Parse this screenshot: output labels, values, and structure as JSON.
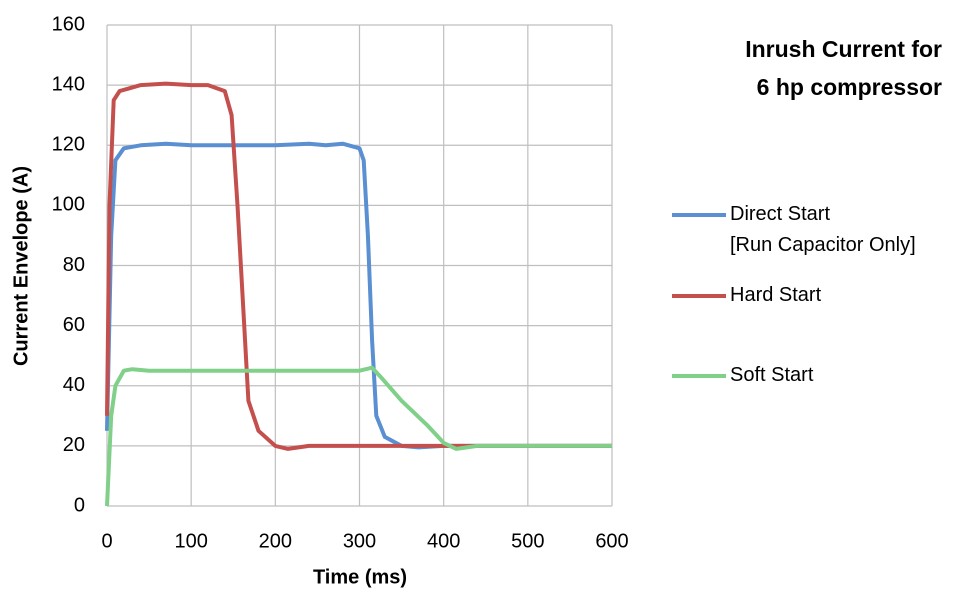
{
  "chart_data": {
    "type": "line",
    "title": "Inrush Current for\n6 hp compressor",
    "x_label": "Time (ms)",
    "y_label": "Current Envelope (A)",
    "xlim": [
      0,
      600
    ],
    "xticks": [
      0,
      100,
      200,
      300,
      400,
      500,
      600
    ],
    "ylim": [
      0,
      160
    ],
    "yticks": [
      0,
      20,
      40,
      60,
      80,
      100,
      120,
      140,
      160
    ],
    "grid": true,
    "series": [
      {
        "name": "Direct Start\n[Run Capacitor Only]",
        "color": "#5a8fd2",
        "x": [
          0,
          5,
          10,
          20,
          40,
          70,
          100,
          150,
          200,
          240,
          260,
          280,
          300,
          305,
          310,
          315,
          320,
          330,
          350,
          370,
          400,
          600
        ],
        "values": [
          25,
          90,
          115,
          119,
          120,
          120.5,
          120,
          120,
          120,
          120.5,
          120,
          120.5,
          119,
          115,
          90,
          55,
          30,
          23,
          20,
          19.5,
          20,
          20
        ]
      },
      {
        "name": "Hard Start",
        "color": "#c4504e",
        "x": [
          0,
          3,
          8,
          15,
          40,
          70,
          100,
          120,
          140,
          148,
          155,
          162,
          168,
          180,
          200,
          215,
          240,
          300,
          600
        ],
        "values": [
          30,
          100,
          135,
          138,
          140,
          140.5,
          140,
          140,
          138,
          130,
          100,
          65,
          35,
          25,
          20,
          19,
          20,
          20,
          20
        ]
      },
      {
        "name": "Soft Start",
        "color": "#80d08a",
        "x": [
          0,
          5,
          10,
          20,
          30,
          50,
          100,
          200,
          300,
          315,
          325,
          350,
          380,
          400,
          415,
          440,
          600
        ],
        "values": [
          0,
          30,
          40,
          45,
          45.5,
          45,
          45,
          45,
          45,
          46,
          43,
          35,
          27,
          21,
          19,
          20,
          20
        ]
      }
    ]
  }
}
